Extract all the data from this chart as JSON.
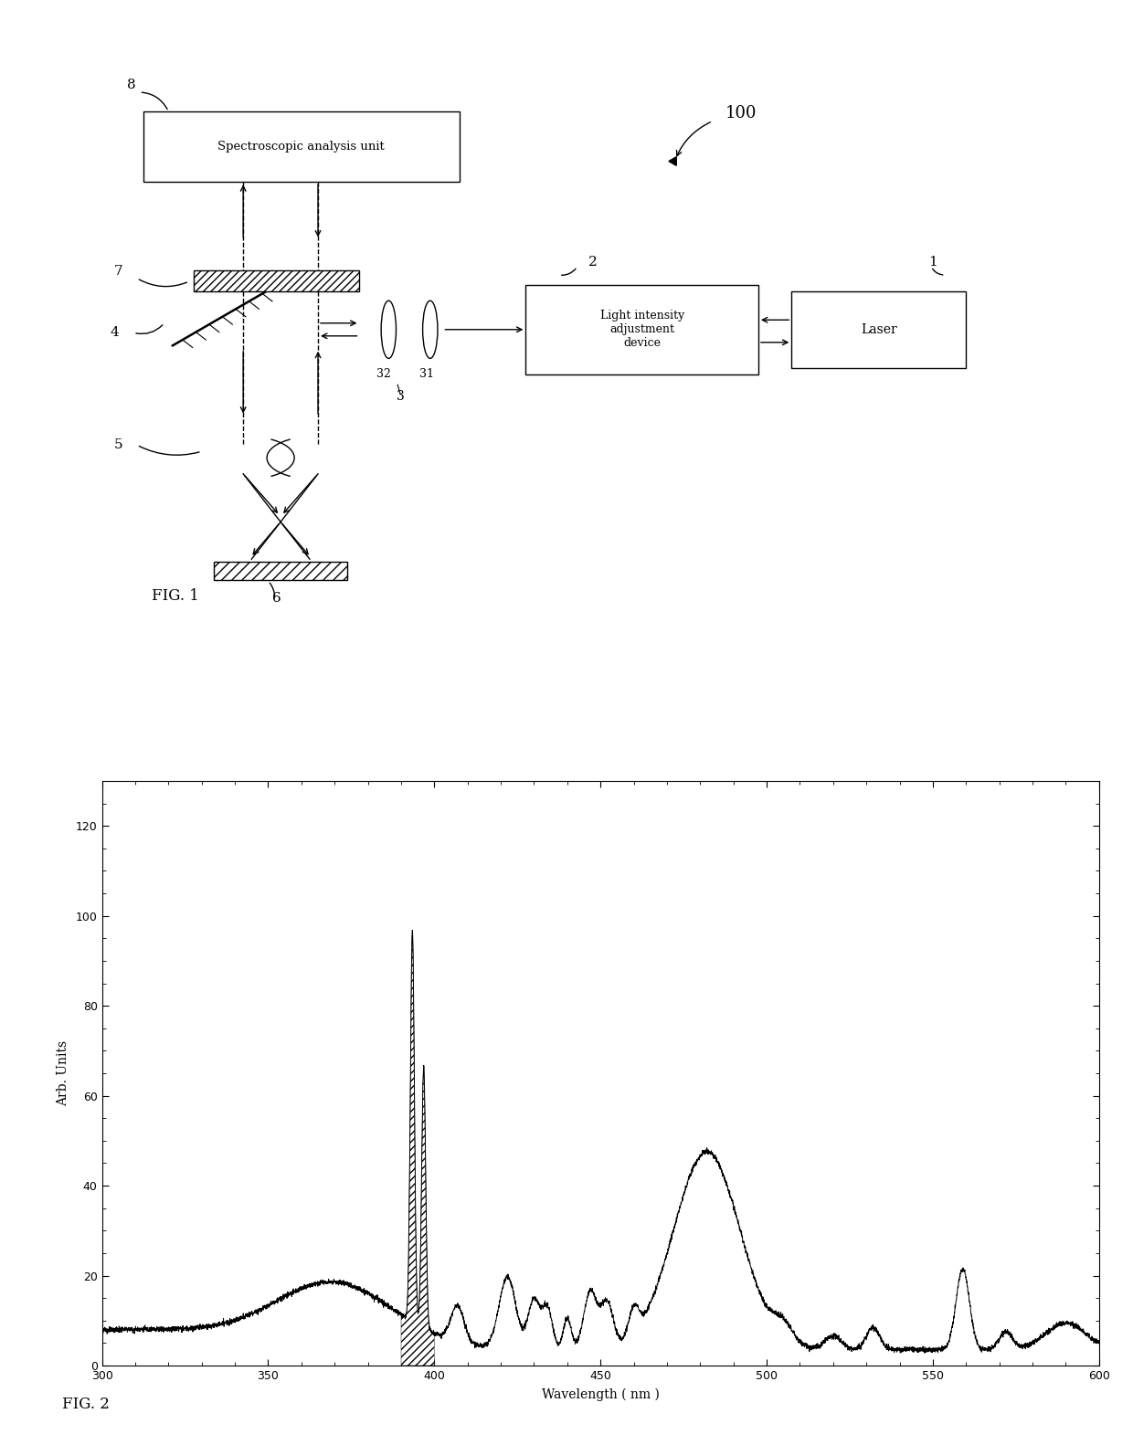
{
  "fig1_label": "FIG. 1",
  "fig2_label": "FIG. 2",
  "spectrum_xlabel": "Wavelength ( nm )",
  "spectrum_ylabel": "Arb. Units",
  "spectrum_xlim": [
    300,
    600
  ],
  "spectrum_ylim": [
    0,
    130
  ],
  "spectrum_xticks": [
    300,
    350,
    400,
    450,
    500,
    550,
    600
  ],
  "spectrum_yticks": [
    0,
    20,
    40,
    60,
    80,
    100,
    120
  ],
  "bg_color": "#ffffff",
  "line_color": "#000000"
}
